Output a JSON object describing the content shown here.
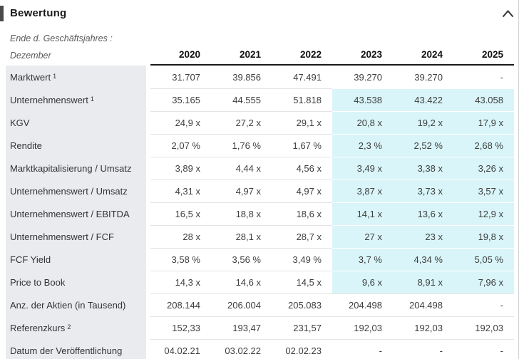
{
  "section": {
    "title": "Bewertung",
    "collapse_icon": "chevron-up"
  },
  "colors": {
    "label_column_bg": "#e9ebee",
    "estimate_highlight_bg": "#d9f5f9",
    "header_rule": "#1a1a1a",
    "row_separator": "#e4e4e4"
  },
  "table": {
    "period_label_line1": "Ende d. Geschäftsjahres :",
    "period_label_line2": "Dezember",
    "years": [
      "2020",
      "2021",
      "2022",
      "2023",
      "2024",
      "2025"
    ],
    "estimate_columns_start": 3,
    "rows": [
      {
        "label": "Marktwert",
        "sup": "1",
        "highlight": false,
        "values": [
          "31.707",
          "39.856",
          "47.491",
          "39.270",
          "39.270",
          "-"
        ]
      },
      {
        "label": "Unternehmenswert",
        "sup": "1",
        "highlight": true,
        "values": [
          "35.165",
          "44.555",
          "51.818",
          "43.538",
          "43.422",
          "43.058"
        ]
      },
      {
        "label": "KGV",
        "sup": "",
        "highlight": true,
        "values": [
          "24,9 x",
          "27,2 x",
          "29,1 x",
          "20,8 x",
          "19,2 x",
          "17,9 x"
        ]
      },
      {
        "label": "Rendite",
        "sup": "",
        "highlight": true,
        "values": [
          "2,07 %",
          "1,76 %",
          "1,67 %",
          "2,3 %",
          "2,52 %",
          "2,68 %"
        ]
      },
      {
        "label": "Marktkapitalisierung / Umsatz",
        "sup": "",
        "highlight": true,
        "values": [
          "3,89 x",
          "4,44 x",
          "4,56 x",
          "3,49 x",
          "3,38 x",
          "3,26 x"
        ]
      },
      {
        "label": "Unternehmenswert / Umsatz",
        "sup": "",
        "highlight": true,
        "values": [
          "4,31 x",
          "4,97 x",
          "4,97 x",
          "3,87 x",
          "3,73 x",
          "3,57 x"
        ]
      },
      {
        "label": "Unternehmenswert / EBITDA",
        "sup": "",
        "highlight": true,
        "values": [
          "16,5 x",
          "18,8 x",
          "18,6 x",
          "14,1 x",
          "13,6 x",
          "12,9 x"
        ]
      },
      {
        "label": "Unternehmenswert / FCF",
        "sup": "",
        "highlight": true,
        "values": [
          "28 x",
          "28,1 x",
          "28,7 x",
          "27 x",
          "23 x",
          "19,8 x"
        ]
      },
      {
        "label": "FCF Yield",
        "sup": "",
        "highlight": true,
        "values": [
          "3,58 %",
          "3,56 %",
          "3,49 %",
          "3,7 %",
          "4,34 %",
          "5,05 %"
        ]
      },
      {
        "label": "Price to Book",
        "sup": "",
        "highlight": true,
        "values": [
          "14,3 x",
          "14,6 x",
          "14,5 x",
          "9,6 x",
          "8,91 x",
          "7,96 x"
        ]
      },
      {
        "label": "Anz. der Aktien (in Tausend)",
        "sup": "",
        "highlight": false,
        "values": [
          "208.144",
          "206.004",
          "205.083",
          "204.498",
          "204.498",
          "-"
        ]
      },
      {
        "label": "Referenzkurs",
        "sup": "2",
        "highlight": false,
        "values": [
          "152,33",
          "193,47",
          "231,57",
          "192,03",
          "192,03",
          "192,03"
        ]
      },
      {
        "label": "Datum der Veröffentlichung",
        "sup": "",
        "highlight": false,
        "values": [
          "04.02.21",
          "03.02.22",
          "02.02.23",
          "-",
          "-",
          "-"
        ]
      }
    ]
  }
}
